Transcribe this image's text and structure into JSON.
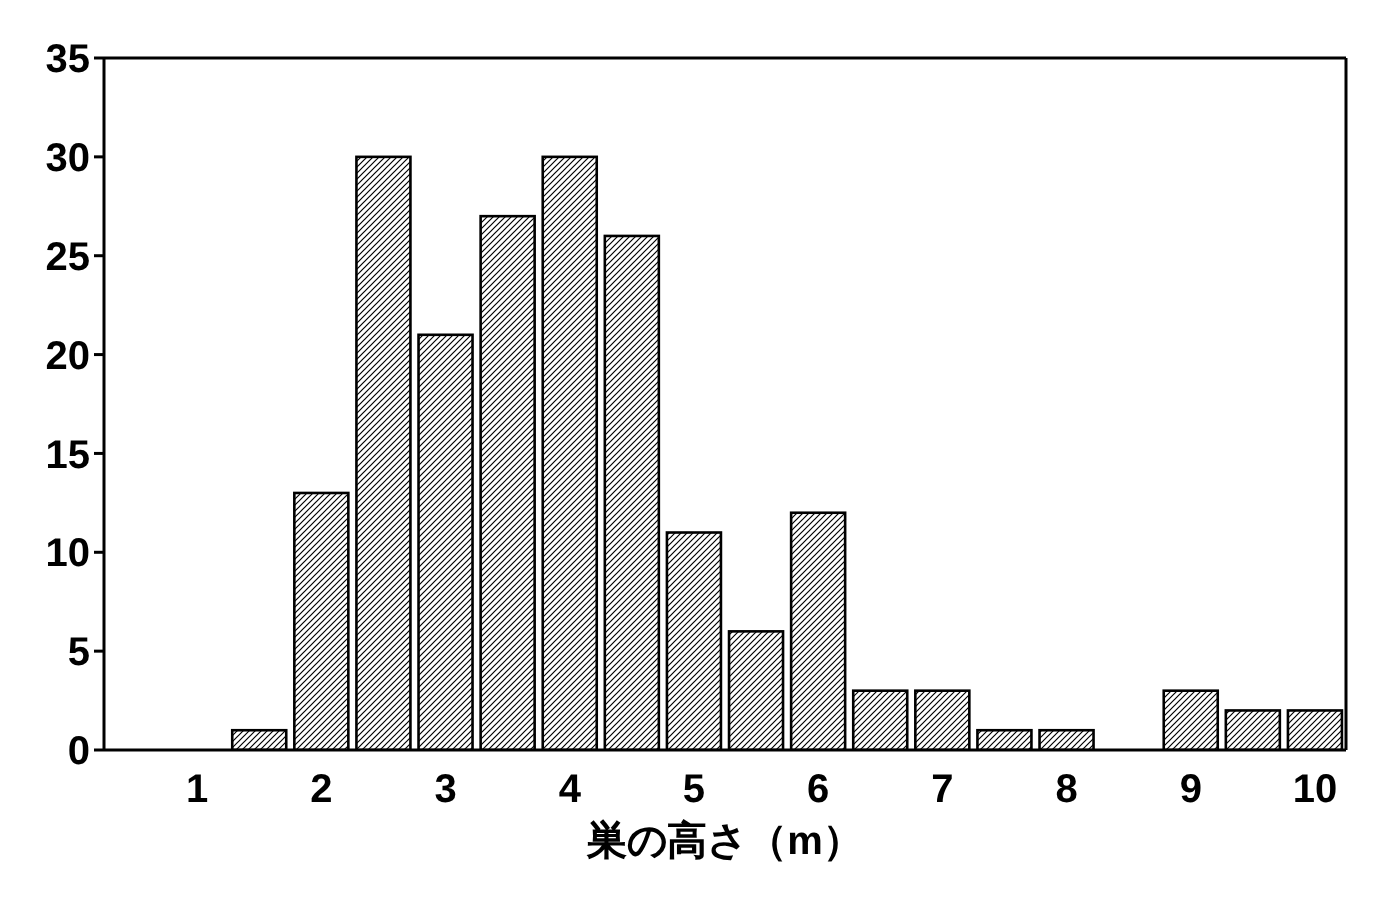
{
  "chart_data": {
    "type": "bar",
    "xlabel": "巣の高さ（m）",
    "categories": [
      null,
      "1",
      null,
      "2",
      null,
      "3",
      null,
      "4",
      null,
      "5",
      null,
      "6",
      null,
      "7",
      null,
      "8",
      null,
      "9",
      null,
      "10"
    ],
    "values": [
      0,
      0,
      1,
      13,
      30,
      21,
      27,
      30,
      26,
      11,
      6,
      12,
      3,
      3,
      1,
      1,
      0,
      3,
      2,
      2
    ],
    "color": "#000000",
    "ylim": [
      0,
      35
    ],
    "yticks": [
      0,
      5,
      10,
      15,
      20,
      25,
      30,
      35
    ]
  }
}
